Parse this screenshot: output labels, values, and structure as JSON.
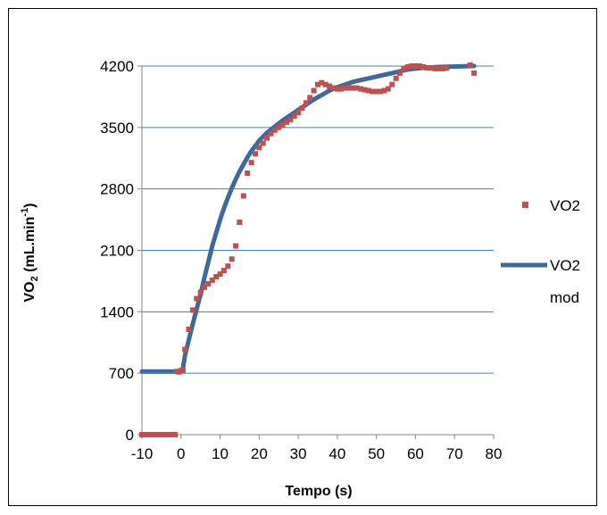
{
  "chart_data": {
    "type": "scatter",
    "title": "",
    "xlabel": "Tempo (s)",
    "ylabel_main": "VO",
    "ylabel_sub": "2",
    "ylabel_rest": " (mL.min",
    "ylabel_sup": "-1",
    "ylabel_close": ")",
    "xlim": [
      -10,
      80
    ],
    "ylim": [
      0,
      4200
    ],
    "x_ticks": [
      -10,
      0,
      10,
      20,
      30,
      40,
      50,
      60,
      70,
      80
    ],
    "y_ticks": [
      0,
      700,
      1400,
      2100,
      2800,
      3500,
      4200
    ],
    "grid": "horizontal",
    "legend_position": "right",
    "series": [
      {
        "name": "VO2",
        "style": "markers",
        "color": "#c0504d",
        "points": [
          [
            -10,
            0
          ],
          [
            -9.5,
            0
          ],
          [
            -9,
            0
          ],
          [
            -8.5,
            0
          ],
          [
            -8,
            0
          ],
          [
            -7.5,
            0
          ],
          [
            -7,
            0
          ],
          [
            -6.5,
            0
          ],
          [
            -6,
            0
          ],
          [
            -5.5,
            0
          ],
          [
            -5,
            0
          ],
          [
            -4.5,
            0
          ],
          [
            -4,
            0
          ],
          [
            -3.5,
            0
          ],
          [
            -3,
            0
          ],
          [
            -2.5,
            0
          ],
          [
            -2,
            0
          ],
          [
            -1.5,
            0
          ],
          [
            -1,
            720
          ],
          [
            -0.5,
            715
          ],
          [
            0,
            730
          ],
          [
            0.5,
            730
          ],
          [
            1,
            970
          ],
          [
            2,
            1200
          ],
          [
            3,
            1420
          ],
          [
            4,
            1550
          ],
          [
            5,
            1620
          ],
          [
            6,
            1680
          ],
          [
            7,
            1720
          ],
          [
            8,
            1760
          ],
          [
            9,
            1800
          ],
          [
            10,
            1830
          ],
          [
            11,
            1870
          ],
          [
            12,
            1920
          ],
          [
            13,
            2000
          ],
          [
            14,
            2150
          ],
          [
            15,
            2420
          ],
          [
            16,
            2720
          ],
          [
            17,
            2980
          ],
          [
            18,
            3100
          ],
          [
            19,
            3200
          ],
          [
            20,
            3270
          ],
          [
            21,
            3320
          ],
          [
            22,
            3380
          ],
          [
            23,
            3430
          ],
          [
            24,
            3470
          ],
          [
            25,
            3500
          ],
          [
            26,
            3530
          ],
          [
            27,
            3560
          ],
          [
            28,
            3590
          ],
          [
            29,
            3630
          ],
          [
            30,
            3670
          ],
          [
            31,
            3720
          ],
          [
            32,
            3780
          ],
          [
            33,
            3840
          ],
          [
            34,
            3920
          ],
          [
            35,
            3990
          ],
          [
            36,
            4010
          ],
          [
            37,
            3990
          ],
          [
            38,
            3970
          ],
          [
            39,
            3950
          ],
          [
            40,
            3940
          ],
          [
            41,
            3940
          ],
          [
            42,
            3950
          ],
          [
            43,
            3950
          ],
          [
            44,
            3950
          ],
          [
            45,
            3950
          ],
          [
            46,
            3940
          ],
          [
            47,
            3930
          ],
          [
            48,
            3920
          ],
          [
            49,
            3910
          ],
          [
            50,
            3910
          ],
          [
            51,
            3910
          ],
          [
            52,
            3920
          ],
          [
            53,
            3940
          ],
          [
            54,
            3990
          ],
          [
            55,
            4060
          ],
          [
            56,
            4120
          ],
          [
            57,
            4170
          ],
          [
            58,
            4190
          ],
          [
            59,
            4200
          ],
          [
            60,
            4200
          ],
          [
            61,
            4200
          ],
          [
            62,
            4190
          ],
          [
            63,
            4180
          ],
          [
            64,
            4180
          ],
          [
            65,
            4170
          ],
          [
            66,
            4170
          ],
          [
            67,
            4170
          ],
          [
            68,
            4180
          ],
          [
            74,
            4210
          ],
          [
            75,
            4120
          ]
        ]
      },
      {
        "name": "VO2 mod",
        "style": "line",
        "color": "#3e689f",
        "points": [
          [
            -10,
            720
          ],
          [
            0,
            720
          ],
          [
            0.5,
            760
          ],
          [
            1,
            900
          ],
          [
            2,
            1080
          ],
          [
            3,
            1260
          ],
          [
            4,
            1430
          ],
          [
            5,
            1600
          ],
          [
            6,
            1790
          ],
          [
            7,
            1970
          ],
          [
            8,
            2150
          ],
          [
            9,
            2300
          ],
          [
            10,
            2450
          ],
          [
            11,
            2580
          ],
          [
            12,
            2700
          ],
          [
            13,
            2810
          ],
          [
            14,
            2910
          ],
          [
            15,
            3000
          ],
          [
            16,
            3080
          ],
          [
            17,
            3160
          ],
          [
            18,
            3230
          ],
          [
            19,
            3290
          ],
          [
            20,
            3350
          ],
          [
            22,
            3440
          ],
          [
            24,
            3510
          ],
          [
            26,
            3580
          ],
          [
            28,
            3640
          ],
          [
            30,
            3700
          ],
          [
            32,
            3760
          ],
          [
            34,
            3820
          ],
          [
            36,
            3870
          ],
          [
            38,
            3920
          ],
          [
            40,
            3960
          ],
          [
            42,
            3990
          ],
          [
            44,
            4020
          ],
          [
            46,
            4040
          ],
          [
            48,
            4060
          ],
          [
            50,
            4080
          ],
          [
            52,
            4100
          ],
          [
            54,
            4120
          ],
          [
            56,
            4140
          ],
          [
            58,
            4160
          ],
          [
            60,
            4170
          ],
          [
            62,
            4180
          ],
          [
            66,
            4190
          ],
          [
            70,
            4195
          ],
          [
            75,
            4200
          ]
        ]
      }
    ],
    "legend": [
      {
        "label_line1": "VO2",
        "label_line2": ""
      },
      {
        "label_line1": "VO2",
        "label_line2": "mod"
      }
    ]
  }
}
